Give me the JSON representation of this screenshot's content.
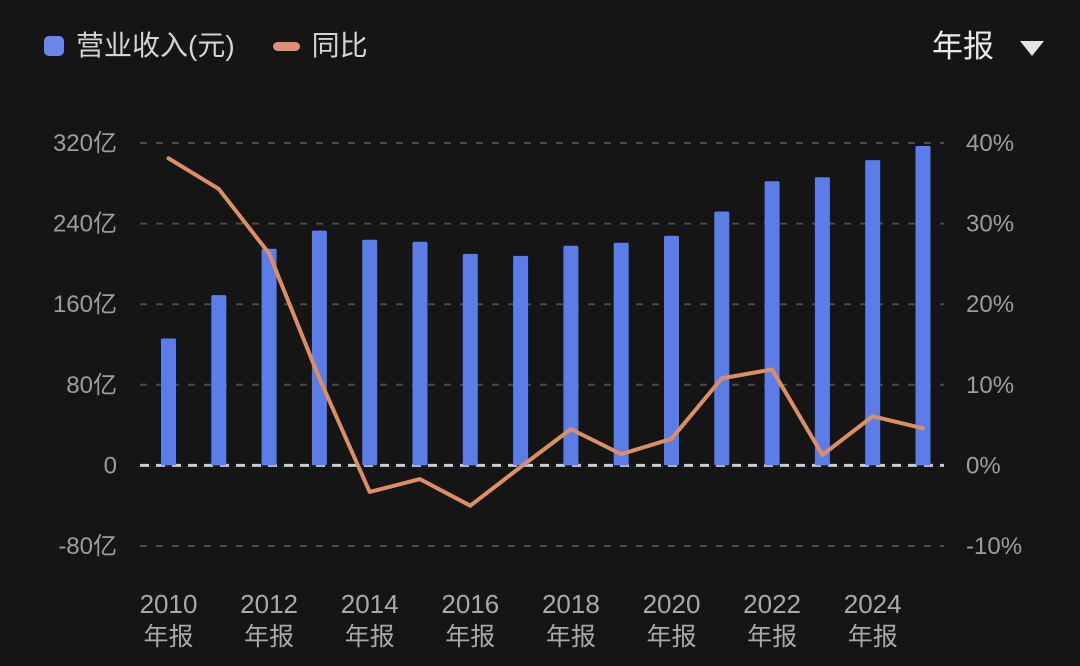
{
  "legend": {
    "items": [
      {
        "label": "营业收入(元)",
        "marker": "square",
        "color": "#6B85E8"
      },
      {
        "label": "同比",
        "marker": "dash",
        "color": "#E09070"
      }
    ]
  },
  "period_selector": {
    "label": "年报"
  },
  "chart_data": {
    "type": "bar+line dual-axis combo",
    "categories": [
      "2010",
      "2011",
      "2012",
      "2013",
      "2014",
      "2015",
      "2016",
      "2017",
      "2018",
      "2019",
      "2020",
      "2021",
      "2022",
      "2023",
      "2024",
      "2025"
    ],
    "x_tick_label_years": [
      "2010",
      "2012",
      "2014",
      "2016",
      "2018",
      "2020",
      "2022",
      "2024"
    ],
    "x_tick_sublabel": "年报",
    "series": [
      {
        "name": "营业收入(元)",
        "type": "bar",
        "axis": "left",
        "unit": "亿",
        "color": "#5B7DE8",
        "values": [
          126,
          169,
          215,
          233,
          224,
          222,
          210,
          208,
          218,
          221,
          228,
          252,
          282,
          286,
          303,
          317
        ]
      },
      {
        "name": "同比",
        "type": "line",
        "axis": "right",
        "unit": "%",
        "color": "#DE8F62",
        "values": [
          38.1,
          34.3,
          26.3,
          10.8,
          -3.3,
          -1.7,
          -5.0,
          -0.2,
          4.5,
          1.4,
          3.3,
          10.8,
          11.9,
          1.3,
          6.1,
          4.6
        ]
      }
    ],
    "left_axis": {
      "tick_labels": [
        "320亿",
        "240亿",
        "160亿",
        "80亿",
        "0",
        "-80亿"
      ],
      "tick_values": [
        320,
        240,
        160,
        80,
        0,
        -80
      ],
      "range": [
        -80,
        320
      ]
    },
    "right_axis": {
      "tick_labels": [
        "40%",
        "30%",
        "20%",
        "10%",
        "0%",
        "-10%"
      ],
      "tick_values": [
        40,
        30,
        20,
        10,
        0,
        -10
      ],
      "range": [
        -10,
        40
      ]
    },
    "grid": {
      "horizontal_dashed": true,
      "zero_line_highlighted": true,
      "legend_position": "top-left"
    }
  },
  "colors": {
    "background": "#151515",
    "bar": "#5B7DE8",
    "line": "#DE8F62",
    "grid": "#4C4C4C",
    "zero_line": "#C7CBD1",
    "axis_text": "#9A9DA2",
    "x_axis_text": "#A7A9AC",
    "legend_text": "#D4D4D6",
    "selector_text": "#EAEAEA"
  }
}
